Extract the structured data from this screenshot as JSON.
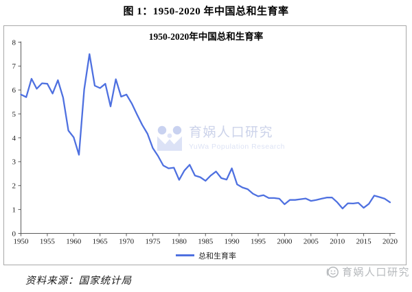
{
  "figure_title": "图 1：1950-2020 年中国总和生育率",
  "chart": {
    "title": "1950-2020年中国总和生育率",
    "legend_label": "总和生育率",
    "line_color": "#4e70e0",
    "axis_color": "#595959"
  },
  "watermark": {
    "cn": "育娲人口研究",
    "en": "YuWa Population Research"
  },
  "footer": {
    "source": "资料来源：国家统计局",
    "brand": "育娲人口研究"
  },
  "chart_data": {
    "type": "line",
    "title": "1950-2020年中国总和生育率",
    "xlabel": "",
    "ylabel": "",
    "xlim": [
      1950,
      2020
    ],
    "ylim": [
      0,
      8
    ],
    "grid": false,
    "legend_position": "bottom",
    "x_ticks": [
      1950,
      1955,
      1960,
      1965,
      1970,
      1975,
      1980,
      1985,
      1990,
      1995,
      2000,
      2005,
      2010,
      2015,
      2020
    ],
    "y_ticks": [
      0,
      1,
      2,
      3,
      4,
      5,
      6,
      7,
      8
    ],
    "series": [
      {
        "name": "总和生育率",
        "x": [
          1950,
          1951,
          1952,
          1953,
          1954,
          1955,
          1956,
          1957,
          1958,
          1959,
          1960,
          1961,
          1962,
          1963,
          1964,
          1965,
          1966,
          1967,
          1968,
          1969,
          1970,
          1971,
          1972,
          1973,
          1974,
          1975,
          1976,
          1977,
          1978,
          1979,
          1980,
          1981,
          1982,
          1983,
          1984,
          1985,
          1986,
          1987,
          1988,
          1989,
          1990,
          1991,
          1992,
          1993,
          1994,
          1995,
          1996,
          1997,
          1998,
          1999,
          2000,
          2001,
          2002,
          2003,
          2004,
          2005,
          2006,
          2007,
          2008,
          2009,
          2010,
          2011,
          2012,
          2013,
          2014,
          2015,
          2016,
          2017,
          2018,
          2019,
          2020
        ],
        "values": [
          5.81,
          5.7,
          6.47,
          6.05,
          6.28,
          6.26,
          5.85,
          6.41,
          5.68,
          4.3,
          4.02,
          3.29,
          6.02,
          7.5,
          6.18,
          6.08,
          6.26,
          5.31,
          6.45,
          5.72,
          5.81,
          5.44,
          4.98,
          4.54,
          4.17,
          3.57,
          3.24,
          2.84,
          2.72,
          2.75,
          2.24,
          2.63,
          2.87,
          2.42,
          2.35,
          2.2,
          2.42,
          2.59,
          2.31,
          2.25,
          2.72,
          2.05,
          1.92,
          1.85,
          1.66,
          1.55,
          1.6,
          1.48,
          1.48,
          1.45,
          1.22,
          1.4,
          1.4,
          1.43,
          1.46,
          1.36,
          1.4,
          1.45,
          1.5,
          1.5,
          1.3,
          1.04,
          1.26,
          1.25,
          1.28,
          1.07,
          1.24,
          1.58,
          1.52,
          1.45,
          1.3
        ]
      }
    ]
  }
}
